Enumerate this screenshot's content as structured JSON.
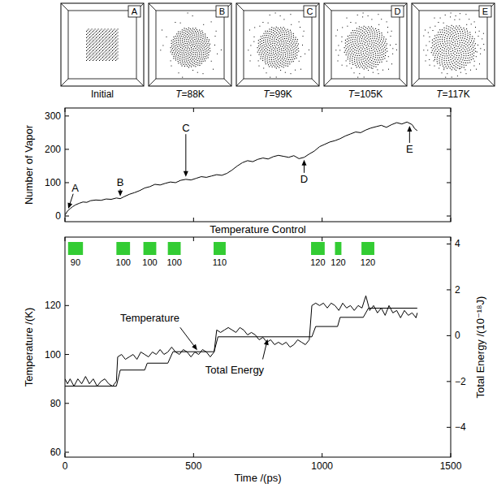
{
  "snapshots": {
    "letters": [
      "A",
      "B",
      "C",
      "D",
      "E"
    ],
    "captions": [
      "Initial",
      "T=88K",
      "T=99K",
      "T=105K",
      "T=117K"
    ]
  },
  "chart_data": [
    {
      "type": "line",
      "y_label": "Number of Vapor",
      "xlim": [
        0,
        1500
      ],
      "xticks": [
        0,
        500,
        1000,
        1500
      ],
      "ylim": [
        -17,
        324
      ],
      "yticks": [
        0,
        100,
        200,
        300
      ],
      "tick_labels": "y",
      "x": [
        0,
        10,
        20,
        30,
        40,
        55,
        70,
        85,
        100,
        120,
        140,
        160,
        180,
        200,
        215,
        230,
        250,
        270,
        290,
        310,
        330,
        350,
        370,
        390,
        410,
        430,
        450,
        470,
        490,
        510,
        530,
        550,
        570,
        590,
        610,
        630,
        650,
        670,
        690,
        710,
        730,
        750,
        770,
        790,
        810,
        830,
        850,
        870,
        890,
        910,
        930,
        950,
        970,
        990,
        1010,
        1030,
        1050,
        1070,
        1090,
        1110,
        1130,
        1150,
        1170,
        1190,
        1210,
        1230,
        1250,
        1270,
        1290,
        1310,
        1330,
        1350,
        1360,
        1370
      ],
      "series": [
        {
          "color": "#000000",
          "values": [
            3,
            15,
            22,
            28,
            33,
            38,
            42,
            41,
            46,
            48,
            47,
            51,
            50,
            54,
            52,
            58,
            65,
            70,
            76,
            84,
            88,
            95,
            93,
            98,
            102,
            100,
            107,
            110,
            108,
            113,
            118,
            116,
            120,
            124,
            122,
            128,
            138,
            150,
            160,
            166,
            163,
            170,
            174,
            171,
            178,
            182,
            179,
            176,
            181,
            172,
            176,
            186,
            195,
            208,
            215,
            222,
            226,
            232,
            240,
            246,
            252,
            250,
            258,
            264,
            268,
            272,
            266,
            274,
            280,
            276,
            282,
            274,
            262,
            256
          ]
        }
      ],
      "annotations": [
        {
          "text": "A",
          "x": 10,
          "y": 15,
          "label_x": 40,
          "label_y": 85
        },
        {
          "text": "B",
          "x": 215,
          "y": 52,
          "label_x": 215,
          "label_y": 100
        },
        {
          "text": "C",
          "x": 470,
          "y": 110,
          "label_x": 470,
          "label_y": 265
        },
        {
          "text": "D",
          "x": 930,
          "y": 176,
          "label_x": 930,
          "label_y": 110
        },
        {
          "text": "E",
          "x": 1340,
          "y": 278,
          "label_x": 1340,
          "label_y": 200
        }
      ]
    },
    {
      "type": "range",
      "title": "Temperature Control",
      "xlim": [
        0,
        1500
      ],
      "x_start": [
        12,
        200,
        305,
        400,
        578,
        957,
        1050,
        1153
      ],
      "x_end": [
        70,
        253,
        355,
        450,
        625,
        1010,
        1075,
        1203
      ],
      "values": [
        90,
        100,
        100,
        100,
        110,
        120,
        120,
        120
      ],
      "color": "#33cc33",
      "data_labels": true
    },
    {
      "type": "line",
      "x_label": "Time /(ps)",
      "y_label": "Temperature /(K)",
      "y2_label": "Total Energy /(10⁻¹⁸J)",
      "xlim": [
        0,
        1500
      ],
      "xticks": [
        0,
        500,
        1000,
        1500
      ],
      "ylim": [
        58,
        148
      ],
      "yticks": [
        60,
        80,
        100,
        120
      ],
      "y2lim": [
        -5.3,
        4.3
      ],
      "y2ticks": [
        {
          "value": -4,
          "label": "−4"
        },
        {
          "value": -2,
          "label": "−2"
        },
        0,
        2,
        4
      ],
      "series": [
        {
          "color": "#000000",
          "x": [
            0,
            10,
            20,
            35,
            50,
            65,
            80,
            95,
            110,
            125,
            140,
            155,
            170,
            185,
            200,
            205,
            220,
            235,
            250,
            265,
            280,
            295,
            310,
            325,
            340,
            355,
            370,
            385,
            400,
            415,
            430,
            445,
            460,
            475,
            490,
            505,
            520,
            535,
            550,
            565,
            580,
            590,
            605,
            620,
            635,
            650,
            665,
            680,
            695,
            710,
            725,
            740,
            755,
            770,
            785,
            800,
            815,
            830,
            845,
            860,
            875,
            890,
            905,
            920,
            935,
            950,
            960,
            975,
            990,
            1005,
            1020,
            1035,
            1050,
            1065,
            1080,
            1095,
            1110,
            1125,
            1140,
            1155,
            1170,
            1185,
            1200,
            1215,
            1230,
            1245,
            1260,
            1275,
            1290,
            1305,
            1320,
            1335,
            1350,
            1365,
            1370
          ],
          "values": [
            90,
            88,
            90,
            87,
            90,
            88,
            91,
            88,
            90,
            87,
            89,
            90,
            88,
            87,
            89,
            99,
            100,
            98,
            99,
            100,
            98,
            101,
            100,
            99,
            101,
            100,
            102,
            100,
            101,
            103,
            101,
            100,
            102,
            101,
            99,
            101,
            100,
            102,
            101,
            99,
            101,
            110,
            109,
            110,
            111,
            110,
            109,
            111,
            110,
            108,
            109,
            108,
            106,
            107,
            105,
            106,
            104,
            105,
            104,
            105,
            103,
            104,
            106,
            105,
            104,
            106,
            120,
            121,
            120,
            121,
            119,
            121,
            120,
            118,
            121,
            119,
            120,
            118,
            120,
            119,
            124,
            118,
            120,
            117,
            119,
            116,
            120,
            117,
            118,
            115,
            118,
            116,
            117,
            115,
            117
          ]
        },
        {
          "color": "#000000",
          "axis": "y2",
          "x": [
            0,
            200,
            215,
            310,
            320,
            400,
            420,
            580,
            595,
            960,
            975,
            1060,
            1070,
            1160,
            1180,
            1370
          ],
          "values": [
            -2.2,
            -2.2,
            -1.5,
            -1.5,
            -1.2,
            -1.2,
            -0.7,
            -0.7,
            -0.05,
            -0.05,
            0.4,
            0.4,
            0.8,
            0.8,
            1.2,
            1.2
          ]
        }
      ],
      "annotations": [
        {
          "text": "Temperature",
          "x": 520,
          "y": 101,
          "label_x": 330,
          "label_y": 115
        },
        {
          "text": "Total Energy",
          "axis": "y2",
          "x": 790,
          "y": -0.05,
          "label_x": 660,
          "label_y": -1.5
        }
      ]
    }
  ]
}
